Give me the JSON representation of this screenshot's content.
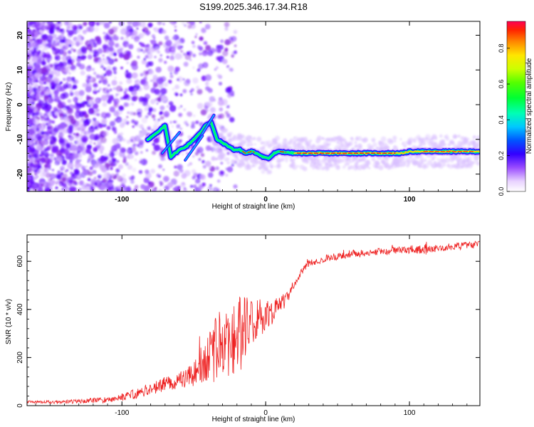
{
  "title": "S199.2025.346.17.34.R18",
  "colors": {
    "frame": "#000000",
    "snr_line": "#ee2222",
    "spectro_low": "#7a1aff",
    "background": "#ffffff"
  },
  "chart_data": [
    {
      "type": "heatmap",
      "name": "spectrogram",
      "xlabel": "Height of straight line (km)",
      "ylabel": "Frequency (Hz)",
      "xlim": [
        -166,
        149
      ],
      "ylim": [
        -25,
        24
      ],
      "xticks": [
        -100,
        0,
        100
      ],
      "xtick_labels": [
        "-100",
        "0",
        "100"
      ],
      "yticks": [
        20,
        10,
        0,
        -10,
        -20
      ],
      "ytick_labels": [
        "20",
        "10",
        "0",
        "-10",
        "-20"
      ],
      "ridge": {
        "x": [
          -82,
          -75,
          -70,
          -66,
          -60,
          -55,
          -50,
          -45,
          -42,
          -38,
          -34,
          -30,
          -26,
          -22,
          -18,
          -14,
          -10,
          -6,
          -2,
          2,
          6,
          10,
          20,
          40,
          60,
          80,
          95,
          100,
          110,
          120,
          130,
          149
        ],
        "y": [
          -10,
          -8,
          -6,
          -15,
          -13,
          -12,
          -10,
          -8,
          -6,
          -5,
          -10,
          -11,
          -12,
          -13,
          -13,
          -14,
          -13.5,
          -14,
          -15,
          -15.5,
          -14,
          -13.5,
          -14,
          -14,
          -14,
          -14,
          -14,
          -13.5,
          -13.5,
          -13.5,
          -13.5,
          -13.5
        ]
      },
      "colorbar": {
        "label": "Normalized spectral amplitude",
        "ticks": [
          0.0,
          0.2,
          0.4,
          0.6,
          0.8
        ],
        "tick_labels": [
          "0.0",
          "0.2",
          "0.4",
          "0.6",
          "0.8"
        ],
        "range": [
          0,
          0.95
        ]
      }
    },
    {
      "type": "line",
      "name": "snr",
      "xlabel": "Height of straight line (km)",
      "ylabel": "SNR (10 * v/v)",
      "xlim": [
        -166,
        149
      ],
      "ylim": [
        0,
        710
      ],
      "xticks": [
        -100,
        0,
        100
      ],
      "xtick_labels": [
        "-100",
        "0",
        "100"
      ],
      "yticks": [
        0,
        200,
        400,
        600
      ],
      "ytick_labels": [
        "0",
        "200",
        "400",
        "600"
      ],
      "series": [
        {
          "name": "SNR",
          "x": [
            -166,
            -150,
            -130,
            -110,
            -100,
            -90,
            -80,
            -70,
            -60,
            -50,
            -45,
            -40,
            -35,
            -30,
            -25,
            -20,
            -15,
            -10,
            -5,
            0,
            5,
            10,
            15,
            20,
            25,
            30,
            40,
            50,
            60,
            70,
            80,
            90,
            100,
            110,
            120,
            130,
            140,
            149
          ],
          "y": [
            15,
            15,
            18,
            25,
            35,
            50,
            70,
            90,
            105,
            130,
            160,
            190,
            230,
            260,
            290,
            300,
            330,
            340,
            360,
            370,
            390,
            420,
            450,
            500,
            560,
            590,
            610,
            620,
            630,
            635,
            640,
            645,
            650,
            650,
            655,
            660,
            665,
            670
          ],
          "noise_amplitude": [
            5,
            6,
            8,
            12,
            15,
            20,
            25,
            30,
            35,
            50,
            80,
            110,
            140,
            160,
            170,
            160,
            130,
            100,
            80,
            60,
            50,
            40,
            30,
            20,
            15,
            15,
            15,
            15,
            15,
            15,
            15,
            15,
            18,
            18,
            15,
            15,
            15,
            15
          ]
        }
      ]
    }
  ]
}
